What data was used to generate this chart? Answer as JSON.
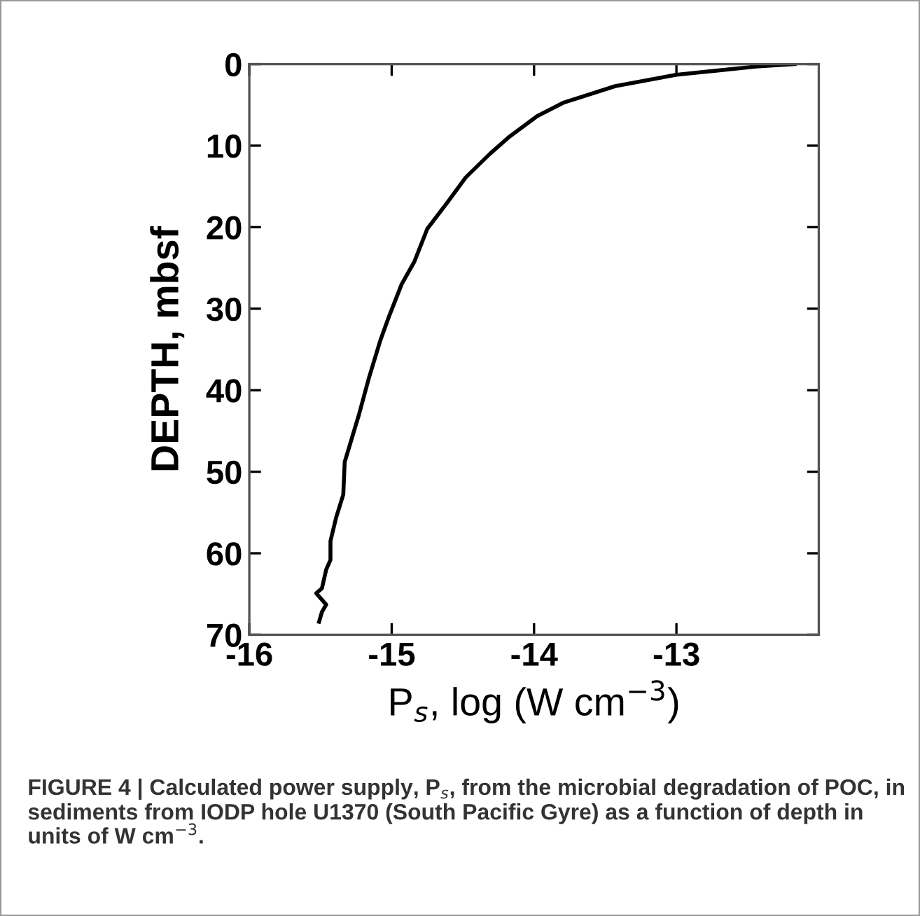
{
  "chart_data": {
    "type": "line",
    "xlabel": "P$_{s}$, log (W cm$^{−3}$)",
    "ylabel": "DEPTH, mbsf",
    "annotations": [
      "FIGURE 4 | Calculated power supply, P$_{s}$, from the microbial degradation of POC, in sediments from IODP hole U1370 (South Pacific Gyre) as a function of depth in units of W cm$^{−3}$."
    ],
    "series": [
      {
        "color": "#000000",
        "x": [
          -12.17,
          -12.44,
          -13.0,
          -13.43,
          -13.79,
          -13.98,
          -14.18,
          -14.31,
          -14.48,
          -14.61,
          -14.75,
          -14.84,
          -14.93,
          -15.02,
          -15.08,
          -15.16,
          -15.23,
          -15.28,
          -15.33,
          -15.34,
          -15.39,
          -15.43,
          -15.43,
          -15.46,
          -15.49,
          -15.53,
          -15.46,
          -15.49,
          -15.51
        ],
        "values": [
          0,
          0.3,
          1.3,
          2.7,
          4.7,
          6.4,
          9.0,
          11.0,
          13.9,
          17.0,
          20.2,
          24.2,
          27.0,
          31.0,
          33.9,
          38.5,
          43.0,
          45.9,
          48.8,
          52.8,
          55.6,
          58.5,
          60.8,
          62.0,
          64.3,
          64.9,
          66.3,
          67.2,
          68.4
        ]
      }
    ],
    "xlim": [
      -16,
      -12
    ],
    "xticks": [
      -16,
      -15,
      -14,
      -13
    ],
    "ylim": [
      70,
      0
    ],
    "yticks": [
      0,
      10,
      20,
      30,
      40,
      50,
      60,
      70
    ],
    "grid": false,
    "legend": false,
    "marker": "none",
    "line_style": "solid"
  }
}
